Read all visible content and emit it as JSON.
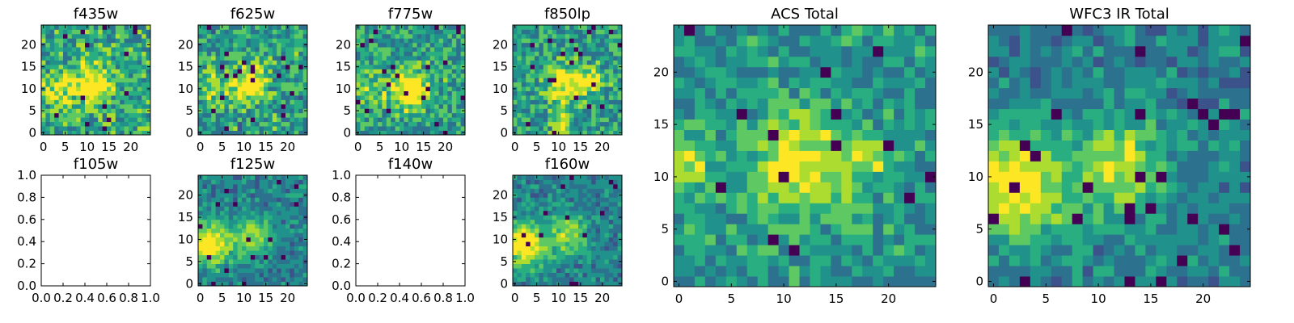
{
  "palette": [
    "#440154",
    "#3b528b",
    "#2c728e",
    "#21918c",
    "#28ae80",
    "#5ec962",
    "#addc30",
    "#fde725"
  ],
  "chart_data": [
    {
      "type": "heatmap",
      "title": "f435w",
      "xlim": [
        -0.5,
        24.5
      ],
      "ylim": [
        -0.5,
        24.5
      ],
      "xticks": [
        0,
        5,
        10,
        15,
        20
      ],
      "yticks": [
        0,
        5,
        10,
        15,
        20
      ],
      "seed": 11,
      "blobs": [
        [
          11,
          11,
          3,
          0.6
        ],
        [
          3,
          10,
          2.5,
          0.3
        ]
      ],
      "noise": 0.6,
      "base": 0.55
    },
    {
      "type": "heatmap",
      "title": "f625w",
      "xlim": [
        -0.5,
        24.5
      ],
      "ylim": [
        -0.5,
        24.5
      ],
      "xticks": [
        0,
        5,
        10,
        15,
        20
      ],
      "yticks": [
        0,
        5,
        10,
        15,
        20
      ],
      "seed": 23,
      "blobs": [
        [
          11,
          11,
          3,
          0.6
        ],
        [
          3,
          10,
          2.5,
          0.3
        ]
      ],
      "noise": 0.6,
      "base": 0.5
    },
    {
      "type": "heatmap",
      "title": "f775w",
      "xlim": [
        -0.5,
        24.5
      ],
      "ylim": [
        -0.5,
        24.5
      ],
      "xticks": [
        0,
        5,
        10,
        15,
        20
      ],
      "yticks": [
        0,
        5,
        10,
        15,
        20
      ],
      "seed": 37,
      "blobs": [
        [
          12,
          10,
          3,
          0.7
        ],
        [
          3,
          10,
          2.5,
          0.3
        ]
      ],
      "noise": 0.55,
      "base": 0.5
    },
    {
      "type": "heatmap",
      "title": "f850lp",
      "xlim": [
        -0.5,
        24.5
      ],
      "ylim": [
        -0.5,
        24.5
      ],
      "xticks": [
        0,
        5,
        10,
        15,
        20
      ],
      "yticks": [
        0,
        5,
        10,
        15,
        20
      ],
      "seed": 41,
      "blobs": [
        [
          12,
          11,
          3,
          0.6
        ],
        [
          18,
          12,
          1.5,
          0.5
        ],
        [
          11,
          2,
          1.5,
          0.5
        ]
      ],
      "noise": 0.55,
      "base": 0.5
    },
    {
      "type": "heatmap",
      "title": "ACS Total",
      "xlim": [
        -0.5,
        24.5
      ],
      "ylim": [
        -0.5,
        24.5
      ],
      "xticks": [
        0,
        5,
        10,
        15,
        20
      ],
      "yticks": [
        0,
        5,
        10,
        15,
        20
      ],
      "seed": 53,
      "blobs": [
        [
          12,
          11,
          3.5,
          0.55
        ],
        [
          1,
          11,
          2,
          0.4
        ],
        [
          18,
          12,
          1.5,
          0.4
        ]
      ],
      "noise": 0.45,
      "base": 0.45
    },
    {
      "type": "heatmap",
      "title": "WFC3 IR Total",
      "xlim": [
        -0.5,
        24.5
      ],
      "ylim": [
        -0.5,
        24.5
      ],
      "xticks": [
        0,
        5,
        10,
        15,
        20
      ],
      "yticks": [
        0,
        5,
        10,
        15,
        20
      ],
      "seed": 67,
      "blobs": [
        [
          2,
          9,
          3.5,
          0.75
        ],
        [
          12,
          11,
          3,
          0.55
        ]
      ],
      "noise": 0.35,
      "base": 0.35
    },
    {
      "type": "empty",
      "title": "f105w",
      "xlim": [
        0,
        1
      ],
      "ylim": [
        0,
        1
      ],
      "xticks": [
        "0.0",
        "0.2",
        "0.4",
        "0.6",
        "0.8",
        "1.0"
      ],
      "yticks": [
        "0.0",
        "0.2",
        "0.4",
        "0.6",
        "0.8",
        "1.0"
      ]
    },
    {
      "type": "heatmap",
      "title": "f125w",
      "xlim": [
        -0.5,
        24.5
      ],
      "ylim": [
        -0.5,
        24.5
      ],
      "xticks": [
        0,
        5,
        10,
        15,
        20
      ],
      "yticks": [
        0,
        5,
        10,
        15,
        20
      ],
      "seed": 79,
      "blobs": [
        [
          2,
          9,
          3.5,
          0.75
        ],
        [
          12,
          11,
          3,
          0.5
        ]
      ],
      "noise": 0.35,
      "base": 0.35
    },
    {
      "type": "empty",
      "title": "f140w",
      "xlim": [
        0,
        1
      ],
      "ylim": [
        0,
        1
      ],
      "xticks": [
        "0.0",
        "0.2",
        "0.4",
        "0.6",
        "0.8",
        "1.0"
      ],
      "yticks": [
        "0.0",
        "0.2",
        "0.4",
        "0.6",
        "0.8",
        "1.0"
      ]
    },
    {
      "type": "heatmap",
      "title": "f160w",
      "xlim": [
        -0.5,
        24.5
      ],
      "ylim": [
        -0.5,
        24.5
      ],
      "xticks": [
        0,
        5,
        10,
        15,
        20
      ],
      "yticks": [
        0,
        5,
        10,
        15,
        20
      ],
      "seed": 97,
      "blobs": [
        [
          2,
          9,
          3.5,
          0.75
        ],
        [
          12,
          11,
          3,
          0.5
        ]
      ],
      "noise": 0.35,
      "base": 0.35
    }
  ]
}
